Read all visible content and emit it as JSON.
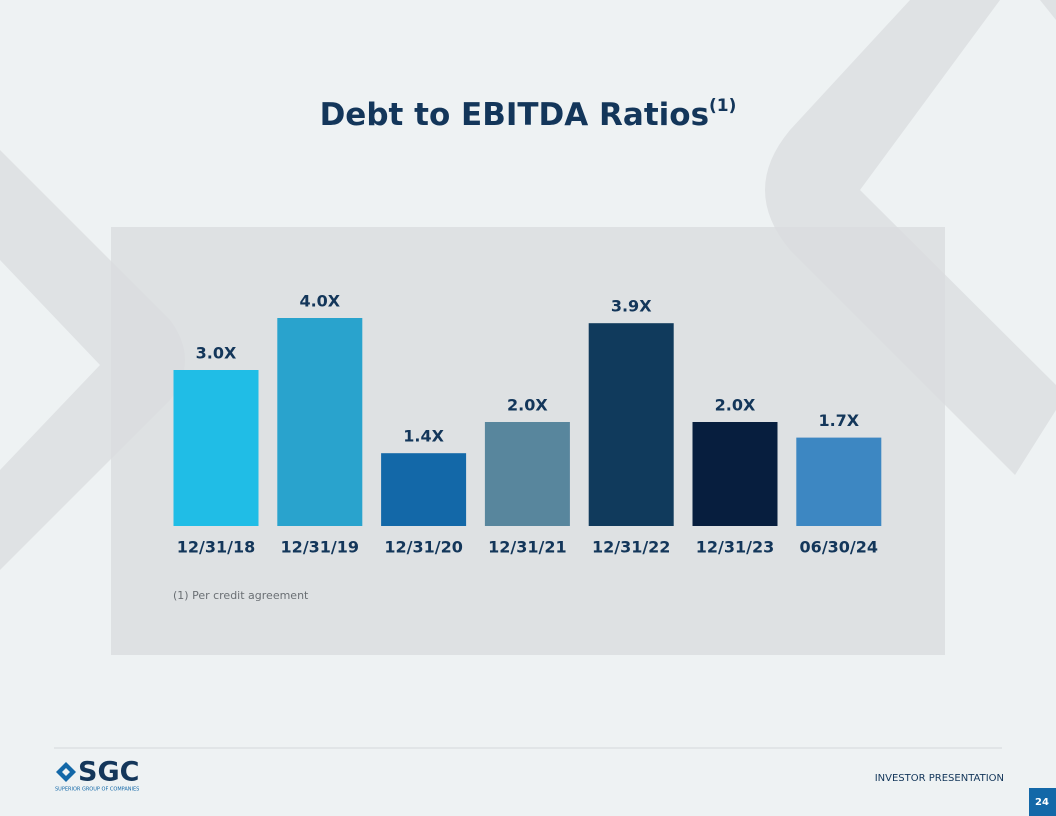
{
  "chart_data": {
    "type": "bar",
    "title": "Debt to EBITDA Ratios",
    "title_note": "(1)",
    "categories": [
      "12/31/18",
      "12/31/19",
      "12/31/20",
      "12/31/21",
      "12/31/22",
      "12/31/23",
      "06/30/24"
    ],
    "values": [
      3.0,
      4.0,
      1.4,
      2.0,
      3.9,
      2.0,
      1.7
    ],
    "value_labels": [
      "3.0X",
      "4.0X",
      "1.4X",
      "2.0X",
      "3.9X",
      "2.0X",
      "1.7X"
    ],
    "colors": [
      "#20bde6",
      "#29a3cd",
      "#1368a8",
      "#58869d",
      "#103a5c",
      "#071e3e",
      "#3d87c2"
    ],
    "footnote": "(1)  Per credit agreement"
  },
  "footer": {
    "logo": "SGC",
    "logo_subtitle": "SUPERIOR GROUP OF COMPANIES",
    "label": "INVESTOR PRESENTATION",
    "page": "24"
  }
}
